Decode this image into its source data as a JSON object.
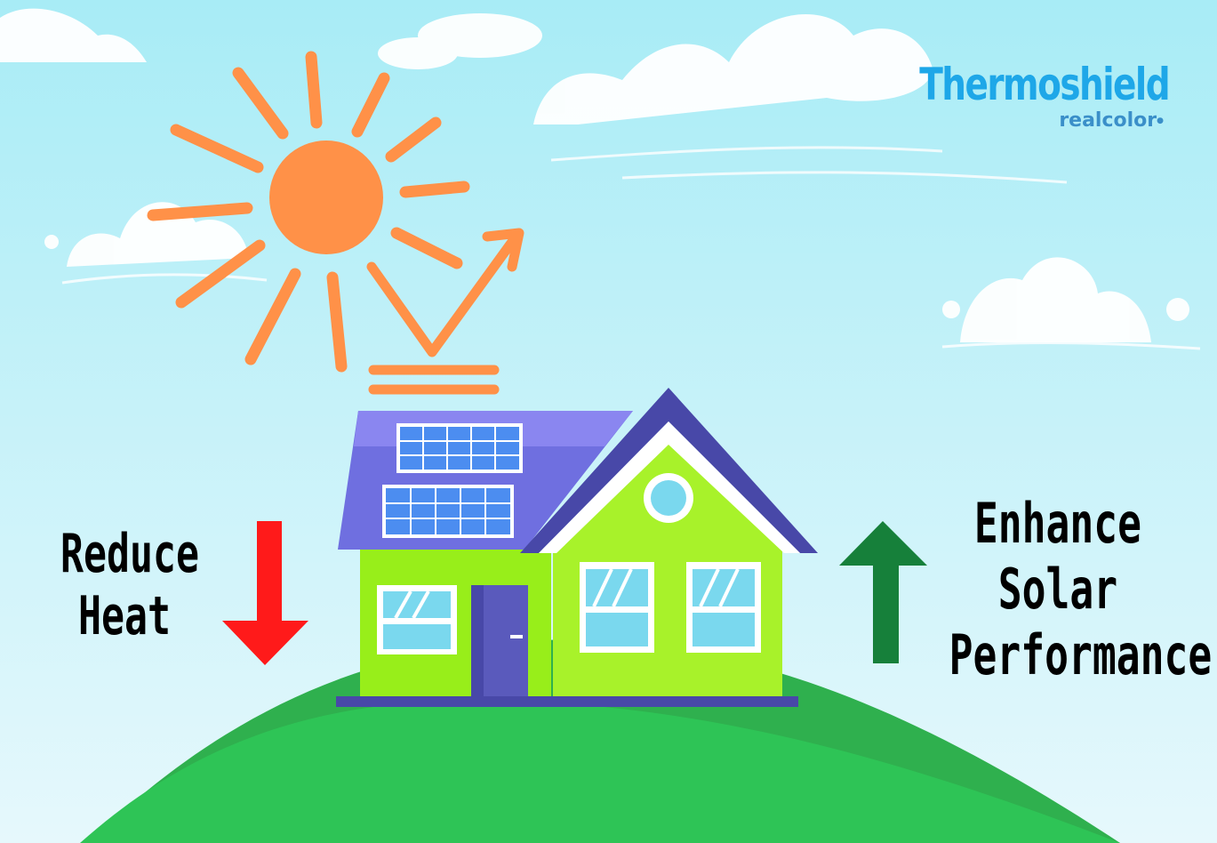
{
  "brand": {
    "name": "Thermoshield",
    "sub": "realcolor"
  },
  "left_caption": [
    "Reduce",
    "Heat"
  ],
  "right_caption": [
    "Enhance",
    "Solar",
    "Performance"
  ],
  "icons": {
    "sun": "sun-icon",
    "left_arrow": "down-arrow-icon",
    "right_arrow": "up-arrow-icon"
  },
  "colors": {
    "sky": "#bff0f8",
    "sun": "#ff9148",
    "house_wall": "#98ee1a",
    "roof": "#7070e0",
    "hill": "#2ec456",
    "reduce_arrow": "#ff1a1a",
    "enhance_arrow": "#16803a",
    "brand": "#1ea7e8"
  }
}
